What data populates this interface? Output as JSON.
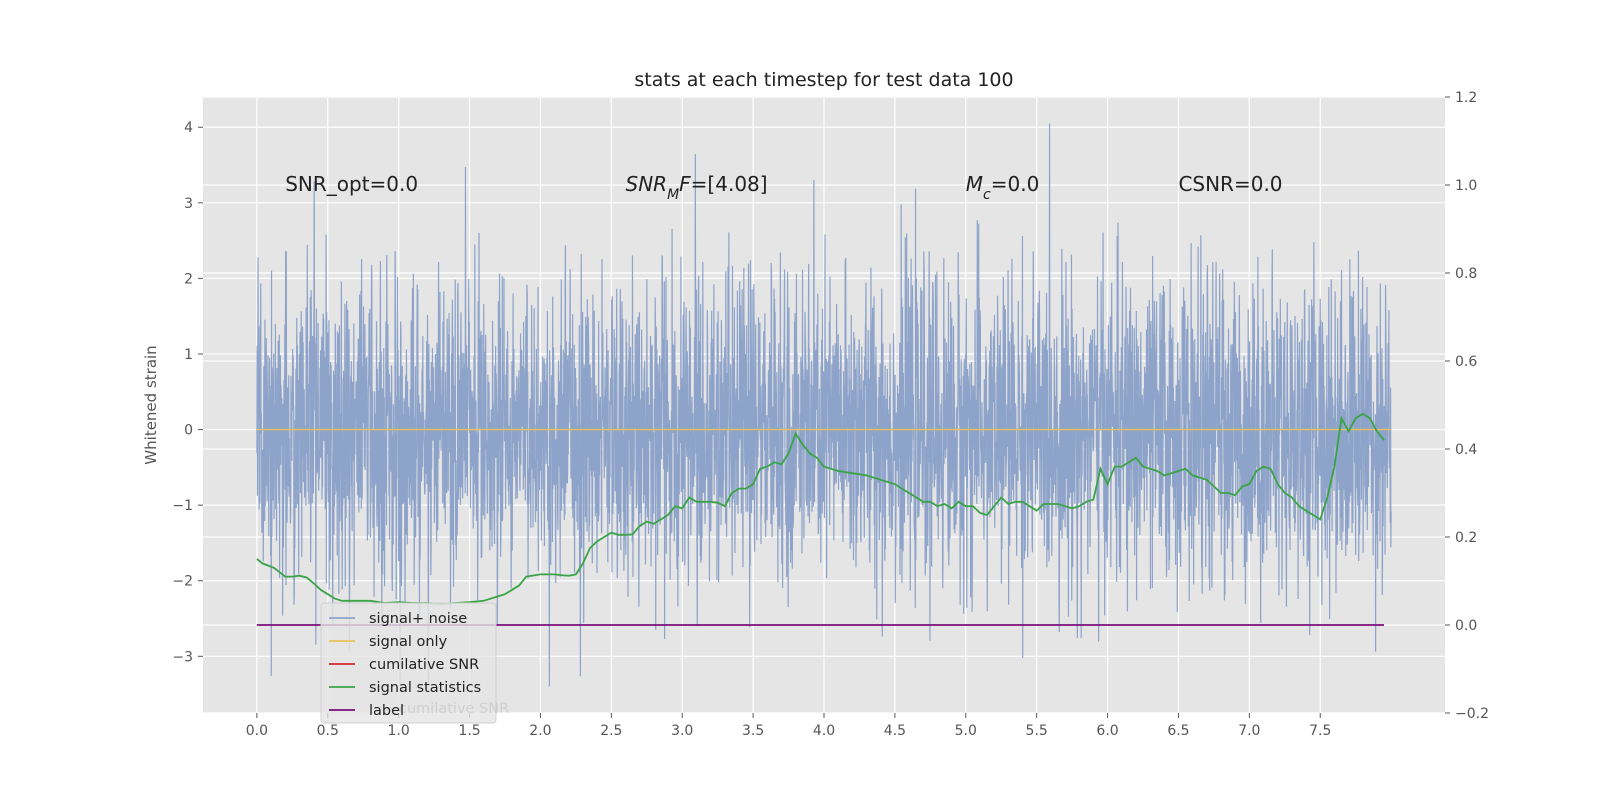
{
  "chart_data": {
    "type": "line",
    "title": "stats at each timestep for test data 100",
    "ylabel": "Whitened strain",
    "xlabel": "",
    "xlim": [
      -0.38,
      8.38
    ],
    "ylim": [
      -3.75,
      4.4
    ],
    "y2lim": [
      -0.2,
      1.2
    ],
    "xticks": [
      0.0,
      0.5,
      1.0,
      1.5,
      2.0,
      2.5,
      3.0,
      3.5,
      4.0,
      4.5,
      5.0,
      5.5,
      6.0,
      6.5,
      7.0,
      7.5
    ],
    "xtick_labels": [
      "0.0",
      "0.5",
      "1.0",
      "1.5",
      "2.0",
      "2.5",
      "3.0",
      "3.5",
      "4.0",
      "4.5",
      "5.0",
      "5.5",
      "6.0",
      "6.5",
      "7.0",
      "7.5"
    ],
    "yticks": [
      -3,
      -2,
      -1,
      0,
      1,
      2,
      3,
      4
    ],
    "ytick_labels": [
      "−3",
      "−2",
      "−1",
      "0",
      "1",
      "2",
      "3",
      "4"
    ],
    "y2ticks": [
      -0.2,
      0.0,
      0.2,
      0.4,
      0.6,
      0.8,
      1.0,
      1.2
    ],
    "y2tick_labels": [
      "−0.2",
      "0.0",
      "0.2",
      "0.4",
      "0.6",
      "0.8",
      "1.0",
      "1.2"
    ],
    "grid": true,
    "legend_position": "lower-left",
    "annotations": [
      {
        "id": "snr-opt",
        "x": 0.2,
        "y": 3.25,
        "parts": [
          {
            "text": "SNR_opt=0.0",
            "italic": false
          }
        ]
      },
      {
        "id": "snr-mf",
        "x": 2.6,
        "y": 3.25,
        "parts": [
          {
            "text": "SNR",
            "italic": true
          },
          {
            "text": "M",
            "italic": true,
            "sub": true
          },
          {
            "text": "F",
            "italic": true
          },
          {
            "text": "=[4.08]",
            "italic": false
          }
        ]
      },
      {
        "id": "mc",
        "x": 5.0,
        "y": 3.25,
        "parts": [
          {
            "text": "M",
            "italic": true
          },
          {
            "text": "c",
            "italic": true,
            "sub": true
          },
          {
            "text": "=0.0",
            "italic": false
          }
        ]
      },
      {
        "id": "csnr",
        "x": 6.5,
        "y": 3.25,
        "parts": [
          {
            "text": "CSNR=0.0",
            "italic": false
          }
        ]
      }
    ],
    "series": [
      {
        "name": "signal+ noise",
        "axis": "left",
        "style": "noise",
        "color": "#8ea3c9",
        "x_range": [
          0.0,
          8.0
        ],
        "y_range": [
          -3.4,
          4.05
        ],
        "description_values": "dense gaussian noise samples, unit variance"
      },
      {
        "name": "signal only",
        "axis": "left",
        "style": "line",
        "color": "#e8c15a",
        "x": [
          0.0,
          8.0
        ],
        "y": [
          0.0,
          0.0
        ]
      },
      {
        "name": "cumilative SNR",
        "axis": "right",
        "style": "line",
        "color": "#d62728",
        "x": [],
        "y": []
      },
      {
        "name": "signal statistics",
        "axis": "right",
        "style": "line",
        "color": "#3aa346",
        "x": [
          0.0,
          0.04,
          0.08,
          0.12,
          0.16,
          0.2,
          0.25,
          0.3,
          0.35,
          0.4,
          0.45,
          0.5,
          0.55,
          0.6,
          0.7,
          0.8,
          0.9,
          1.0,
          1.1,
          1.2,
          1.3,
          1.4,
          1.5,
          1.6,
          1.7,
          1.75,
          1.8,
          1.85,
          1.9,
          2.0,
          2.1,
          2.15,
          2.2,
          2.25,
          2.3,
          2.35,
          2.4,
          2.45,
          2.5,
          2.55,
          2.6,
          2.65,
          2.7,
          2.75,
          2.8,
          2.9,
          2.95,
          3.0,
          3.05,
          3.1,
          3.2,
          3.25,
          3.3,
          3.35,
          3.4,
          3.45,
          3.5,
          3.55,
          3.6,
          3.65,
          3.7,
          3.75,
          3.8,
          3.85,
          3.9,
          3.95,
          4.0,
          4.05,
          4.1,
          4.2,
          4.3,
          4.4,
          4.5,
          4.55,
          4.6,
          4.65,
          4.7,
          4.75,
          4.8,
          4.85,
          4.9,
          4.95,
          5.0,
          5.05,
          5.1,
          5.15,
          5.2,
          5.25,
          5.3,
          5.35,
          5.4,
          5.45,
          5.5,
          5.55,
          5.6,
          5.65,
          5.7,
          5.75,
          5.8,
          5.85,
          5.9,
          5.95,
          6.0,
          6.05,
          6.1,
          6.15,
          6.2,
          6.25,
          6.3,
          6.35,
          6.4,
          6.45,
          6.5,
          6.55,
          6.6,
          6.65,
          6.7,
          6.75,
          6.8,
          6.85,
          6.9,
          6.95,
          7.0,
          7.05,
          7.1,
          7.15,
          7.2,
          7.25,
          7.3,
          7.35,
          7.4,
          7.45,
          7.5,
          7.55,
          7.6,
          7.65,
          7.7,
          7.75,
          7.8,
          7.85,
          7.9,
          7.95
        ],
        "y": [
          0.15,
          0.14,
          0.135,
          0.13,
          0.12,
          0.11,
          0.11,
          0.112,
          0.108,
          0.095,
          0.08,
          0.07,
          0.06,
          0.055,
          0.055,
          0.055,
          0.05,
          0.052,
          0.05,
          0.05,
          0.048,
          0.05,
          0.052,
          0.055,
          0.065,
          0.07,
          0.08,
          0.09,
          0.11,
          0.115,
          0.115,
          0.113,
          0.112,
          0.115,
          0.14,
          0.175,
          0.19,
          0.2,
          0.21,
          0.205,
          0.205,
          0.206,
          0.225,
          0.235,
          0.23,
          0.25,
          0.27,
          0.265,
          0.29,
          0.28,
          0.28,
          0.278,
          0.27,
          0.3,
          0.31,
          0.31,
          0.32,
          0.355,
          0.36,
          0.37,
          0.365,
          0.39,
          0.435,
          0.41,
          0.39,
          0.38,
          0.36,
          0.355,
          0.35,
          0.345,
          0.34,
          0.33,
          0.32,
          0.31,
          0.3,
          0.29,
          0.28,
          0.28,
          0.27,
          0.275,
          0.265,
          0.28,
          0.27,
          0.27,
          0.255,
          0.25,
          0.27,
          0.29,
          0.275,
          0.28,
          0.28,
          0.27,
          0.26,
          0.275,
          0.275,
          0.275,
          0.27,
          0.265,
          0.27,
          0.28,
          0.285,
          0.355,
          0.32,
          0.36,
          0.36,
          0.37,
          0.38,
          0.36,
          0.355,
          0.35,
          0.34,
          0.345,
          0.35,
          0.355,
          0.34,
          0.335,
          0.33,
          0.315,
          0.3,
          0.3,
          0.295,
          0.315,
          0.32,
          0.35,
          0.36,
          0.355,
          0.32,
          0.3,
          0.29,
          0.27,
          0.26,
          0.25,
          0.24,
          0.29,
          0.36,
          0.47,
          0.44,
          0.47,
          0.48,
          0.47,
          0.44,
          0.42
        ]
      },
      {
        "name": "label",
        "axis": "right",
        "style": "line",
        "color": "#7b0e7b",
        "x": [
          0.0,
          7.95
        ],
        "y": [
          0.0,
          0.0
        ]
      }
    ],
    "legend_overflow_text": "cumilative SNR"
  }
}
